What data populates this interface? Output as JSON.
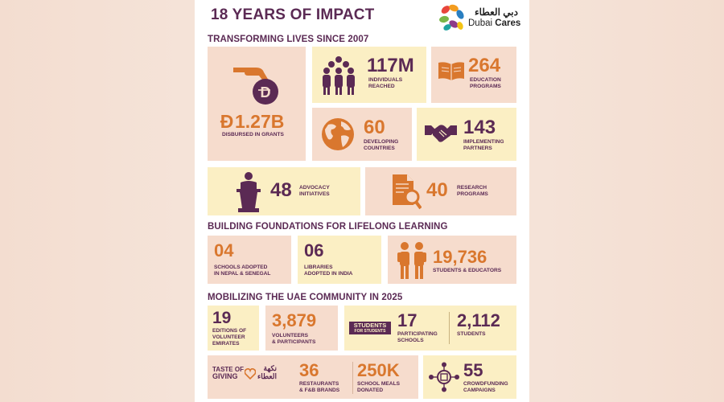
{
  "header": {
    "title": "18 YEARS OF IMPACT",
    "logo": {
      "arabic": "دبي العطاء",
      "name_part1": "Dubai",
      "name_part2": "Cares"
    }
  },
  "sections": {
    "transforming": "TRANSFORMING LIVES SINCE 2007",
    "foundations": "BUILDING FOUNDATIONS FOR LIFELONG LEARNING",
    "community": "MOBILIZING THE UAE COMMUNITY IN 2025"
  },
  "stats": {
    "grants": {
      "value": "1.27B",
      "label": "DISBURSED IN GRANTS",
      "icon": "hand-coin-icon"
    },
    "individuals": {
      "value": "117M",
      "label": "INDIVIDUALS\nREACHED",
      "icon": "people-group-icon"
    },
    "education": {
      "value": "264",
      "label": "EDUCATION\nPROGRAMS",
      "icon": "open-book-icon"
    },
    "countries": {
      "value": "60",
      "label": "DEVELOPING\nCOUNTRIES",
      "icon": "globe-icon"
    },
    "partners": {
      "value": "143",
      "label": "IMPLEMENTING\nPARTNERS",
      "icon": "handshake-icon"
    },
    "advocacy": {
      "value": "48",
      "label": "ADVOCACY\nINITIATIVES",
      "icon": "podium-speaker-icon"
    },
    "research": {
      "value": "40",
      "label": "RESEARCH\nPROGRAMS",
      "icon": "document-magnifier-icon"
    }
  },
  "foundations": {
    "schools": {
      "value": "04",
      "label": "SCHOOLS ADOPTED\nIN NEPAL & SENEGAL"
    },
    "libraries": {
      "value": "06",
      "label": "LIBRARIES\nADOPTED IN INDIA"
    },
    "students": {
      "value": "19,736",
      "label": "STUDENTS & EDUCATORS",
      "icon": "students-icon"
    }
  },
  "community": {
    "editions": {
      "value": "19",
      "label": "EDITIONS OF\nVOLUNTEER\nEMIRATES"
    },
    "volunteers": {
      "value": "3,879",
      "label": "VOLUNTEERS\n& PARTICIPANTS"
    },
    "students_for_students": {
      "logo_line1": "STUDENTS",
      "logo_line2": "FOR STUDENTS",
      "schools_value": "17",
      "schools_label": "PARTICIPATING\nSCHOOLS",
      "students_value": "2,112",
      "students_label": "STUDENTS"
    },
    "taste_of_giving": {
      "logo_en_line1": "TASTE OF",
      "logo_en_line2": "GIVING",
      "logo_ar_line1": "نكهة",
      "logo_ar_line2": "العطاء",
      "restaurants_value": "36",
      "restaurants_label": "RESTAURANTS\n& F&B BRANDS",
      "meals_value": "250K",
      "meals_label": "SCHOOL MEALS\nDONATED"
    },
    "crowdfunding": {
      "value": "55",
      "label": "CROWDFUNDING\nCAMPAIGNS",
      "icon": "crowdfunding-network-icon"
    }
  },
  "colors": {
    "purple": "#5b2a54",
    "orange": "#d9772e",
    "tile_pink": "#f6dccd",
    "tile_yellow": "#fbefc4",
    "page_background": "#f5e3d8"
  }
}
